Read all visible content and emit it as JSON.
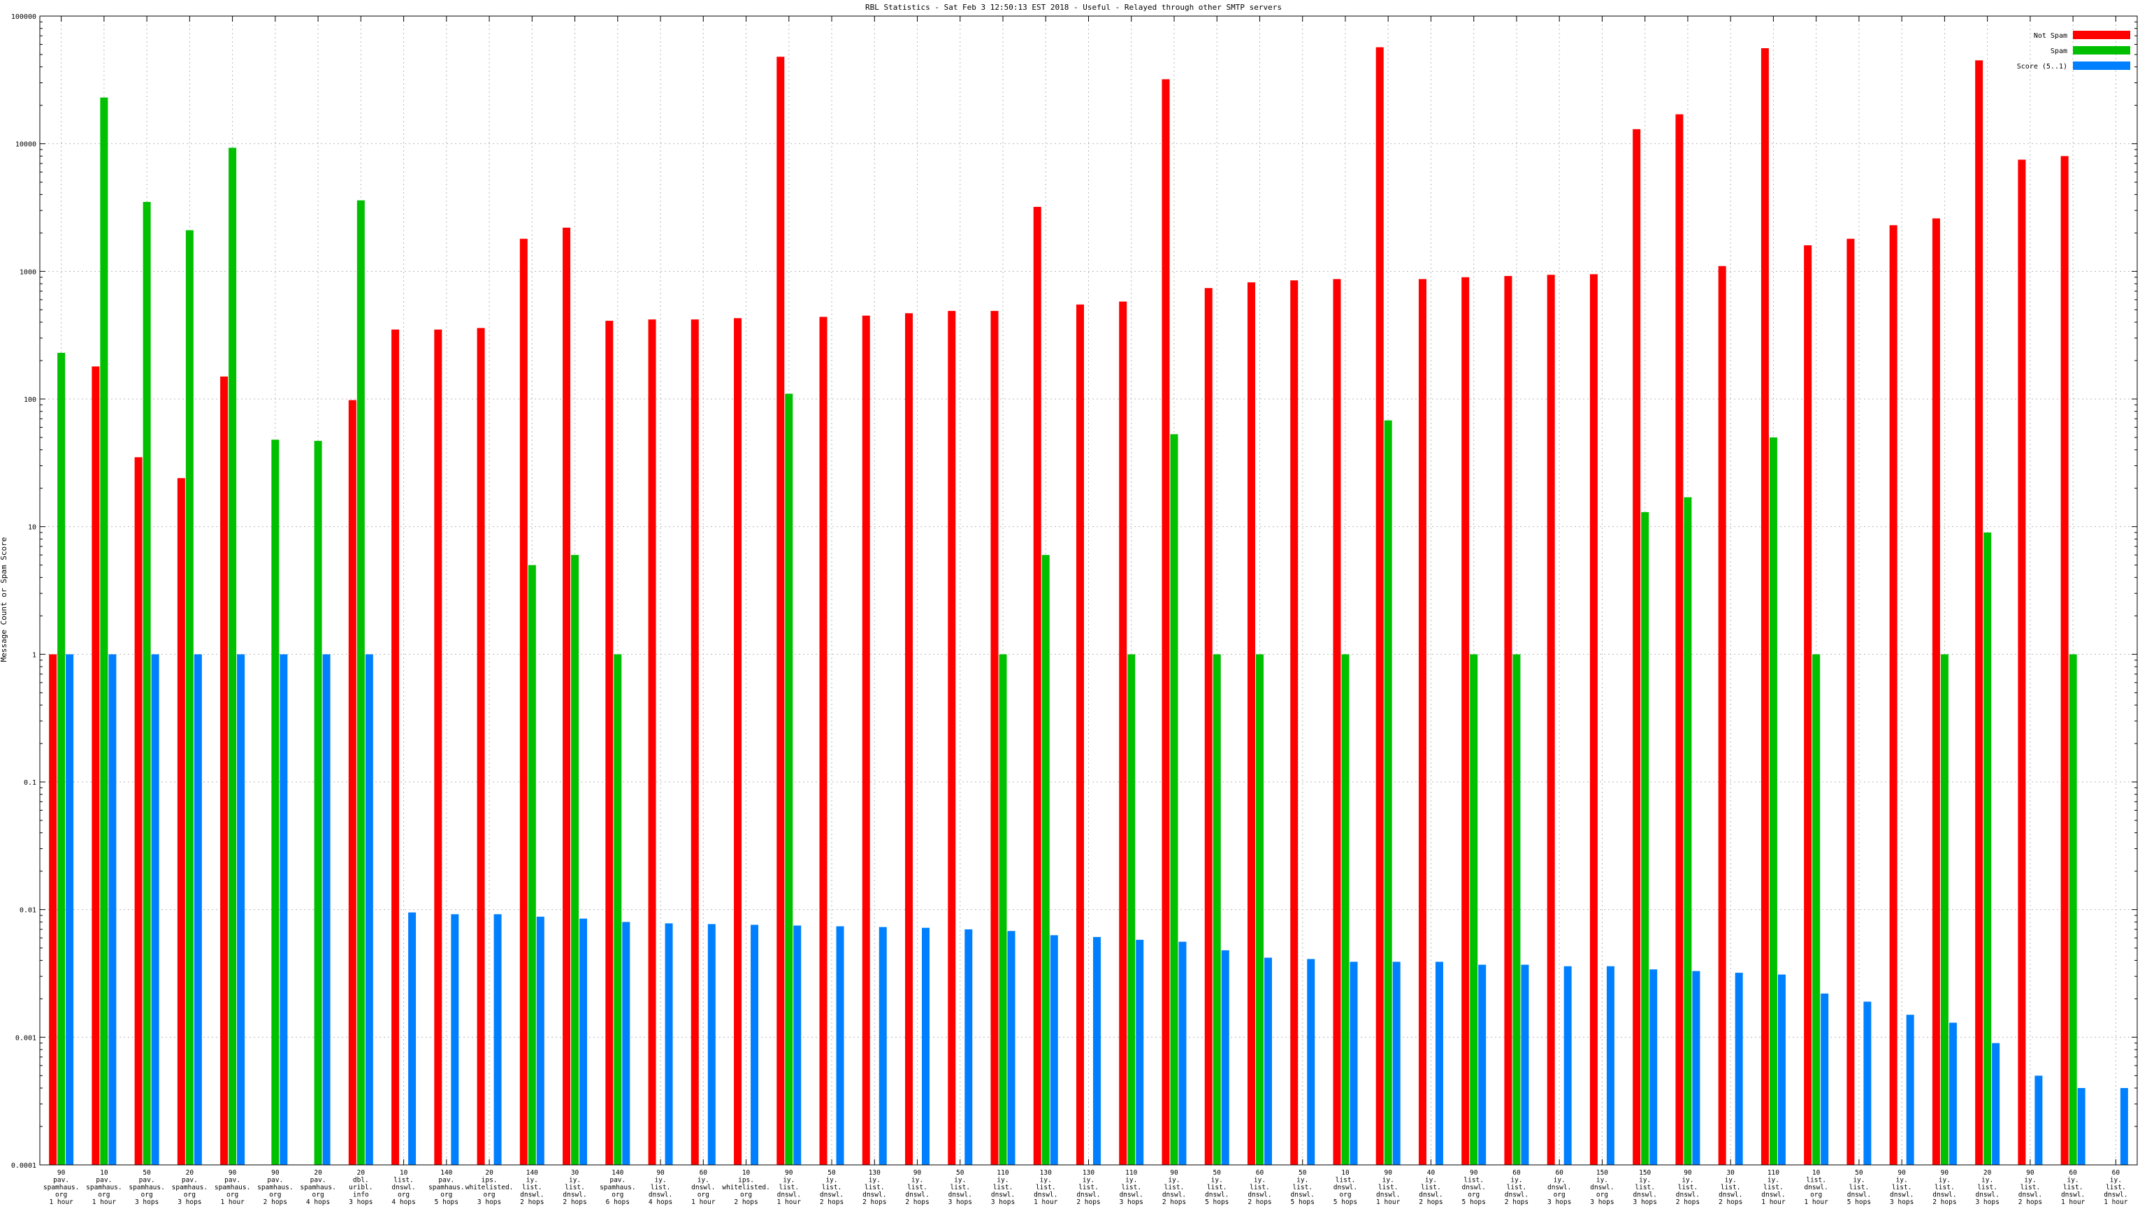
{
  "chart_data": {
    "type": "bar",
    "title": "RBL Statistics - Sat Feb  3 12:50:13 EST 2018 - Useful - Relayed through other SMTP servers",
    "ylabel": "Message Count or Spam Score",
    "xlabel": "",
    "yscale": "log",
    "ylim": [
      0.0001,
      100000
    ],
    "y_ticks": [
      "0.0001",
      "0.001",
      "0.01",
      "0.1",
      "1",
      "10",
      "100",
      "1000",
      "10000",
      "100000"
    ],
    "grid": true,
    "legend_position": "top-right",
    "series_colors": [
      "#ff0000",
      "#00c000",
      "#0080ff"
    ],
    "categories": [
      [
        "90",
        "pav.",
        "spamhaus.",
        "org",
        "1 hour"
      ],
      [
        "10",
        "pav.",
        "spamhaus.",
        "org",
        "1 hour"
      ],
      [
        "50",
        "pav.",
        "spamhaus.",
        "org",
        "3 hops"
      ],
      [
        "20",
        "pav.",
        "spamhaus.",
        "org",
        "3 hops"
      ],
      [
        "90",
        "pav.",
        "spamhaus.",
        "org",
        "1 hour"
      ],
      [
        "90",
        "pav.",
        "spamhaus.",
        "org",
        "2 hops"
      ],
      [
        "20",
        "pav.",
        "spamhaus.",
        "org",
        "4 hops"
      ],
      [
        "20",
        "dbl.",
        "uribl.",
        "info",
        "3 hops"
      ],
      [
        "10",
        "list.",
        "dnswl.",
        "org",
        "4 hops"
      ],
      [
        "140",
        "pav.",
        "spamhaus.",
        "org",
        "5 hops"
      ],
      [
        "20",
        "ips.",
        "whitelisted.",
        "org",
        "3 hops"
      ],
      [
        "140",
        "iy.",
        "list.",
        "dnswl.",
        "2 hops"
      ],
      [
        "30",
        "iy.",
        "list.",
        "dnswl.",
        "2 hops"
      ],
      [
        "140",
        "pav.",
        "spamhaus.",
        "org",
        "6 hops"
      ],
      [
        "90",
        "iy.",
        "list.",
        "dnswl.",
        "4 hops"
      ],
      [
        "60",
        "iy.",
        "dnswl.",
        "org",
        "1 hour"
      ],
      [
        "10",
        "ips.",
        "whitelisted.",
        "org",
        "2 hops"
      ],
      [
        "90",
        "iy.",
        "list.",
        "dnswl.",
        "1 hour"
      ],
      [
        "50",
        "iy.",
        "list.",
        "dnswl.",
        "2 hops"
      ],
      [
        "130",
        "iy.",
        "list.",
        "dnswl.",
        "2 hops"
      ],
      [
        "90",
        "iy.",
        "list.",
        "dnswl.",
        "2 hops"
      ],
      [
        "50",
        "iy.",
        "list.",
        "dnswl.",
        "3 hops"
      ],
      [
        "110",
        "iy.",
        "list.",
        "dnswl.",
        "3 hops"
      ],
      [
        "130",
        "iy.",
        "list.",
        "dnswl.",
        "1 hour"
      ],
      [
        "130",
        "iy.",
        "list.",
        "dnswl.",
        "2 hops"
      ],
      [
        "110",
        "iy.",
        "list.",
        "dnswl.",
        "3 hops"
      ],
      [
        "90",
        "iy.",
        "list.",
        "dnswl.",
        "2 hops"
      ],
      [
        "50",
        "iy.",
        "list.",
        "dnswl.",
        "5 hops"
      ],
      [
        "60",
        "iy.",
        "list.",
        "dnswl.",
        "2 hops"
      ],
      [
        "50",
        "iy.",
        "list.",
        "dnswl.",
        "5 hops"
      ],
      [
        "10",
        "list.",
        "dnswl.",
        "org",
        "5 hops"
      ],
      [
        "90",
        "iy.",
        "list.",
        "dnswl.",
        "1 hour"
      ],
      [
        "40",
        "iy.",
        "list.",
        "dnswl.",
        "2 hops"
      ],
      [
        "90",
        "list.",
        "dnswl.",
        "org",
        "5 hops"
      ],
      [
        "60",
        "iy.",
        "list.",
        "dnswl.",
        "2 hops"
      ],
      [
        "60",
        "iy.",
        "dnswl.",
        "org",
        "3 hops"
      ],
      [
        "150",
        "iy.",
        "dnswl.",
        "org",
        "3 hops"
      ],
      [
        "150",
        "iy.",
        "list.",
        "dnswl.",
        "3 hops"
      ],
      [
        "90",
        "iy.",
        "list.",
        "dnswl.",
        "2 hops"
      ],
      [
        "30",
        "iy.",
        "list.",
        "dnswl.",
        "2 hops"
      ],
      [
        "110",
        "iy.",
        "list.",
        "dnswl.",
        "1 hour"
      ],
      [
        "10",
        "list.",
        "dnswl.",
        "org",
        "1 hour"
      ],
      [
        "50",
        "iy.",
        "list.",
        "dnswl.",
        "5 hops"
      ],
      [
        "90",
        "iy.",
        "list.",
        "dnswl.",
        "3 hops"
      ],
      [
        "90",
        "iy.",
        "list.",
        "dnswl.",
        "2 hops"
      ],
      [
        "20",
        "iy.",
        "list.",
        "dnswl.",
        "3 hops"
      ],
      [
        "90",
        "iy.",
        "list.",
        "dnswl.",
        "2 hops"
      ],
      [
        "60",
        "iy.",
        "list.",
        "dnswl.",
        "1 hour"
      ],
      [
        "60",
        "iy.",
        "list.",
        "dnswl.",
        "1 hour"
      ]
    ],
    "series": [
      {
        "name": "Not Spam",
        "values": [
          1,
          180,
          35,
          24,
          150,
          null,
          null,
          98,
          350,
          350,
          360,
          1800,
          2200,
          410,
          420,
          420,
          430,
          48000,
          440,
          450,
          470,
          490,
          490,
          3200,
          550,
          580,
          32000,
          740,
          820,
          850,
          870,
          57000,
          870,
          900,
          920,
          940,
          950,
          13000,
          17000,
          1100,
          56000,
          1600,
          1800,
          2300,
          2600,
          45000,
          7500,
          8000,
          null
        ]
      },
      {
        "name": "Spam",
        "values": [
          230,
          23000,
          3500,
          2100,
          9300,
          48,
          47,
          3600,
          null,
          null,
          null,
          5,
          6,
          1,
          null,
          null,
          null,
          110,
          null,
          null,
          null,
          null,
          1,
          6,
          null,
          1,
          53,
          1,
          1,
          null,
          1,
          68,
          null,
          1,
          1,
          null,
          null,
          13,
          17,
          null,
          50,
          1,
          null,
          null,
          1,
          9,
          null,
          1,
          null
        ]
      },
      {
        "name": "Score (5..1)",
        "values": [
          1,
          1,
          1,
          1,
          1,
          1,
          1,
          1,
          0.0095,
          0.0092,
          0.0092,
          0.0088,
          0.0085,
          0.008,
          0.0078,
          0.0077,
          0.0076,
          0.0075,
          0.0074,
          0.0073,
          0.0072,
          0.007,
          0.0068,
          0.0063,
          0.0061,
          0.0058,
          0.0056,
          0.0048,
          0.0042,
          0.0041,
          0.0039,
          0.0039,
          0.0039,
          0.0037,
          0.0037,
          0.0036,
          0.0036,
          0.0034,
          0.0033,
          0.0032,
          0.0031,
          0.0022,
          0.0019,
          0.0015,
          0.0013,
          0.0009,
          0.0005,
          0.0004,
          0.0004
        ]
      }
    ]
  }
}
